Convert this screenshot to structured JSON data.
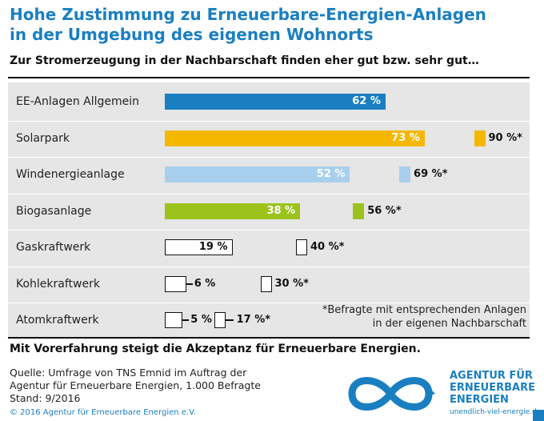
{
  "title_line1": "Hohe Zustimmung zu Erneuerbare-Energien-Anlagen",
  "title_line2": "in der Umgebung des eigenen Wohnorts",
  "subtitle": "Zur Stromerzeugung in der Nachbarschaft finden eher gut bzw. sehr gut…",
  "footnote_line1": "*Befragte mit entsprechenden Anlagen",
  "footnote_line2": "in der eigenen Nachbarschaft",
  "conclusion": "Mit Vorerfahrung steigt die Akzeptanz für Erneuerbare Energien.",
  "source_line1": "Quelle: Umfrage von TNS Emnid im Auftrag der",
  "source_line2": "Agentur für Erneuerbare Energien, 1.000 Befragte",
  "source_line3": "Stand: 9/2016",
  "copyright": "© 2016 Agentur für Erneuerbare Energien e.V.",
  "logo": {
    "line1": "AGENTUR FÜR",
    "line2": "ERNEUERBARE",
    "line3": "ENERGIEN",
    "url": "unendlich-viel-energie.de",
    "icon": "infinity-logo"
  },
  "colors": {
    "title": "#1a7fc1",
    "ee_general": "#1a7fc1",
    "solar": "#f5b800",
    "wind": "#a8d0ee",
    "biogas": "#9bc31c",
    "fossil": "#ffffff",
    "panel": "#e6e6e6"
  },
  "chart_data": {
    "type": "bar",
    "orientation": "horizontal",
    "title": "Hohe Zustimmung zu Erneuerbare-Energien-Anlagen in der Umgebung des eigenen Wohnorts",
    "subtitle": "Zur Stromerzeugung in der Nachbarschaft finden eher gut bzw. sehr gut…",
    "unit": "%",
    "categories": [
      "EE-Anlagen Allgemein",
      "Solarpark",
      "Windenergieanlage",
      "Biogasanlage",
      "Gaskraftwerk",
      "Kohlekraftwerk",
      "Atomkraftwerk"
    ],
    "series": [
      {
        "values": [
          62,
          73,
          52,
          38,
          19,
          6,
          5
        ],
        "labels": [
          "62 %",
          "73 %",
          "52 %",
          "38 %",
          "19 %",
          "6 %",
          "5 %"
        ]
      },
      {
        "values": [
          null,
          90,
          69,
          56,
          40,
          30,
          17
        ],
        "labels": [
          "",
          "90 %*",
          "69 %*",
          "56 %*",
          "40 %*",
          "30 %*",
          "17 %*"
        ]
      }
    ],
    "annotations": [
      "*Befragte mit entsprechenden Anlagen in der eigenen Nachbarschaft"
    ],
    "xlim": [
      0,
      100
    ],
    "grid": false,
    "legend": "none"
  }
}
